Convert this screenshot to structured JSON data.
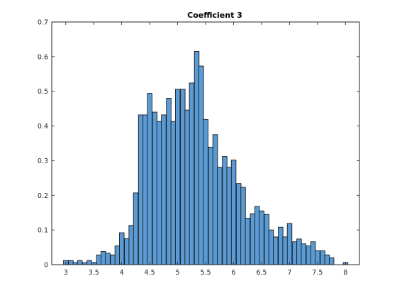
{
  "chart_data": {
    "type": "bar",
    "title": "Coefficient 3",
    "xlabel": "",
    "ylabel": "",
    "xlim": [
      2.75,
      8.25
    ],
    "ylim": [
      0,
      0.7
    ],
    "xticks": [
      3,
      3.5,
      4,
      4.5,
      5,
      5.5,
      6,
      6.5,
      7,
      7.5,
      8
    ],
    "xtick_labels": [
      "3",
      "3.5",
      "4",
      "4.5",
      "5",
      "5.5",
      "6",
      "6.5",
      "7",
      "7.5",
      "8"
    ],
    "yticks": [
      0,
      0.1,
      0.2,
      0.3,
      0.4,
      0.5,
      0.6,
      0.7
    ],
    "ytick_labels": [
      "0",
      "0.1",
      "0.2",
      "0.3",
      "0.4",
      "0.5",
      "0.6",
      "0.7"
    ],
    "grid": false,
    "bar_color": "#5b9bd5",
    "bin_width": 0.0833,
    "bin_starts": [
      2.96,
      3.05,
      3.13,
      3.21,
      3.3,
      3.38,
      3.46,
      3.55,
      3.63,
      3.71,
      3.8,
      3.88,
      3.96,
      4.05,
      4.13,
      4.21,
      4.3,
      4.38,
      4.46,
      4.55,
      4.63,
      4.71,
      4.8,
      4.88,
      4.96,
      5.05,
      5.13,
      5.21,
      5.3,
      5.38,
      5.46,
      5.55,
      5.63,
      5.71,
      5.8,
      5.88,
      5.96,
      6.05,
      6.13,
      6.21,
      6.3,
      6.38,
      6.46,
      6.55,
      6.63,
      6.71,
      6.8,
      6.88,
      6.96,
      7.05,
      7.13,
      7.21,
      7.3,
      7.38,
      7.46,
      7.55,
      7.63,
      7.71,
      7.8,
      7.88,
      7.96
    ],
    "values": [
      0.012,
      0.012,
      0.006,
      0.012,
      0.006,
      0.012,
      0.006,
      0.028,
      0.038,
      0.033,
      0.028,
      0.054,
      0.092,
      0.075,
      0.113,
      0.207,
      0.432,
      0.432,
      0.494,
      0.44,
      0.413,
      0.432,
      0.48,
      0.413,
      0.506,
      0.506,
      0.446,
      0.524,
      0.615,
      0.573,
      0.419,
      0.339,
      0.375,
      0.281,
      0.312,
      0.281,
      0.302,
      0.234,
      0.223,
      0.134,
      0.147,
      0.168,
      0.155,
      0.145,
      0.1,
      0.08,
      0.108,
      0.08,
      0.119,
      0.066,
      0.074,
      0.06,
      0.054,
      0.066,
      0.04,
      0.04,
      0.028,
      0.02,
      0.0,
      0.0,
      0.006
    ]
  }
}
